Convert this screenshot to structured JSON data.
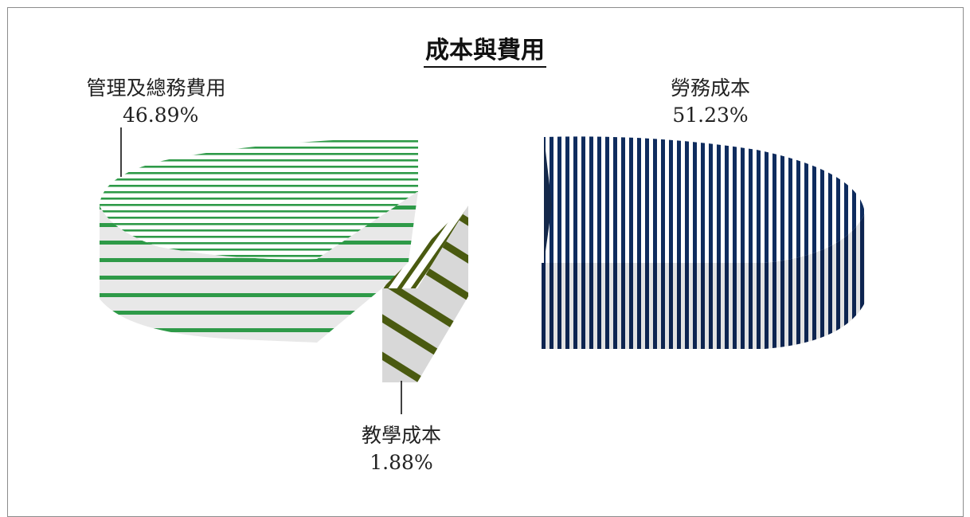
{
  "chart_data": {
    "type": "pie",
    "title": "成本與費用",
    "slices": [
      {
        "label": "勞務成本",
        "value": 51.23,
        "value_label": "51.23%",
        "color": "#0f2c5e",
        "pattern": "vertical-stripes"
      },
      {
        "label": "教學成本",
        "value": 1.88,
        "value_label": "1.88%",
        "color": "#4a5a10",
        "pattern": "diagonal-stripes"
      },
      {
        "label": "管理及總務費用",
        "value": 46.89,
        "value_label": "46.89%",
        "color": "#2e9a48",
        "pattern": "horizontal-stripes"
      }
    ],
    "legend": "none",
    "style": "3d-exploded"
  }
}
